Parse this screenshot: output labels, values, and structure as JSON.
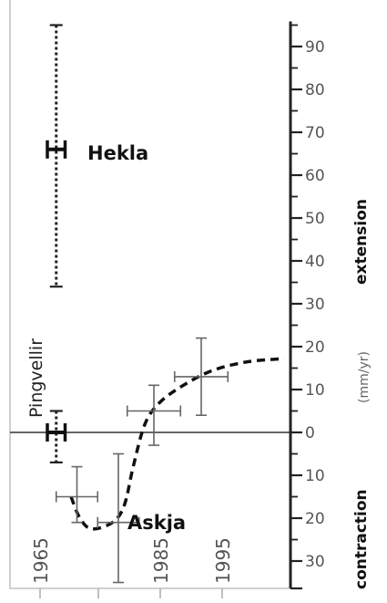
{
  "chart_data": {
    "type": "scatter",
    "title": "",
    "y_axis": {
      "ylim": [
        -35,
        95
      ],
      "ticks": [
        -30,
        -20,
        -10,
        0,
        10,
        20,
        30,
        40,
        50,
        60,
        70,
        80,
        90
      ],
      "tick_labels": [
        "30",
        "20",
        "10",
        "0",
        "10",
        "20",
        "30",
        "40",
        "50",
        "60",
        "70",
        "80",
        "90"
      ],
      "unit_label": "(mm/yr)",
      "extension_label": "extension",
      "contraction_label": "contraction"
    },
    "x_axis": {
      "xlim": [
        1962,
        2008
      ],
      "tick_labels": [
        {
          "x": 1965,
          "text": "1965"
        },
        {
          "x": 1985,
          "text": "1985"
        },
        {
          "x": 1995,
          "text": "1995"
        }
      ]
    },
    "zero_line": true,
    "series": [
      {
        "name": "Hekla",
        "style": "dotted",
        "points": [
          {
            "x": 1966.5,
            "y": 66,
            "xerr": 1.5,
            "ylow": 34,
            "yhigh": 95
          }
        ]
      },
      {
        "name": "Pingvellir",
        "style": "dotted",
        "points": [
          {
            "x": 1966.5,
            "y": 0,
            "xerr": 1.5,
            "ylow": -7,
            "yhigh": 5
          }
        ]
      },
      {
        "name": "Askja",
        "style": "solid",
        "points": [
          {
            "x": 1970,
            "y": -15,
            "xerr": 3.5,
            "ylow": -21,
            "yhigh": -8
          },
          {
            "x": 1977,
            "y": -21,
            "xerr": 3.5,
            "ylow": -35,
            "yhigh": -5
          },
          {
            "x": 1983,
            "y": 5,
            "xerr": 4.5,
            "ylow": -3,
            "yhigh": 11
          },
          {
            "x": 1991,
            "y": 13,
            "xerr": 4.5,
            "ylow": 4,
            "yhigh": 22
          }
        ]
      }
    ],
    "trend_curve": [
      {
        "x": 1969,
        "y": -15
      },
      {
        "x": 1970.5,
        "y": -20
      },
      {
        "x": 1972.5,
        "y": -22.5
      },
      {
        "x": 1976,
        "y": -21
      },
      {
        "x": 1978,
        "y": -17
      },
      {
        "x": 1979.5,
        "y": -8
      },
      {
        "x": 1981.5,
        "y": 2
      },
      {
        "x": 1984,
        "y": 7
      },
      {
        "x": 1988,
        "y": 11
      },
      {
        "x": 1993,
        "y": 14.5
      },
      {
        "x": 1999,
        "y": 16.5
      },
      {
        "x": 2005,
        "y": 17.2
      }
    ],
    "labels": {
      "Hekla": "Hekla",
      "Pingvellir": "Pingvellir",
      "Askja": "Askja"
    },
    "colors": {
      "axis": "#222222",
      "errorbar": "#555555",
      "curve": "#111111",
      "text": "#111111",
      "tick_label": "#555555",
      "frame": "#d8d8d8"
    }
  }
}
